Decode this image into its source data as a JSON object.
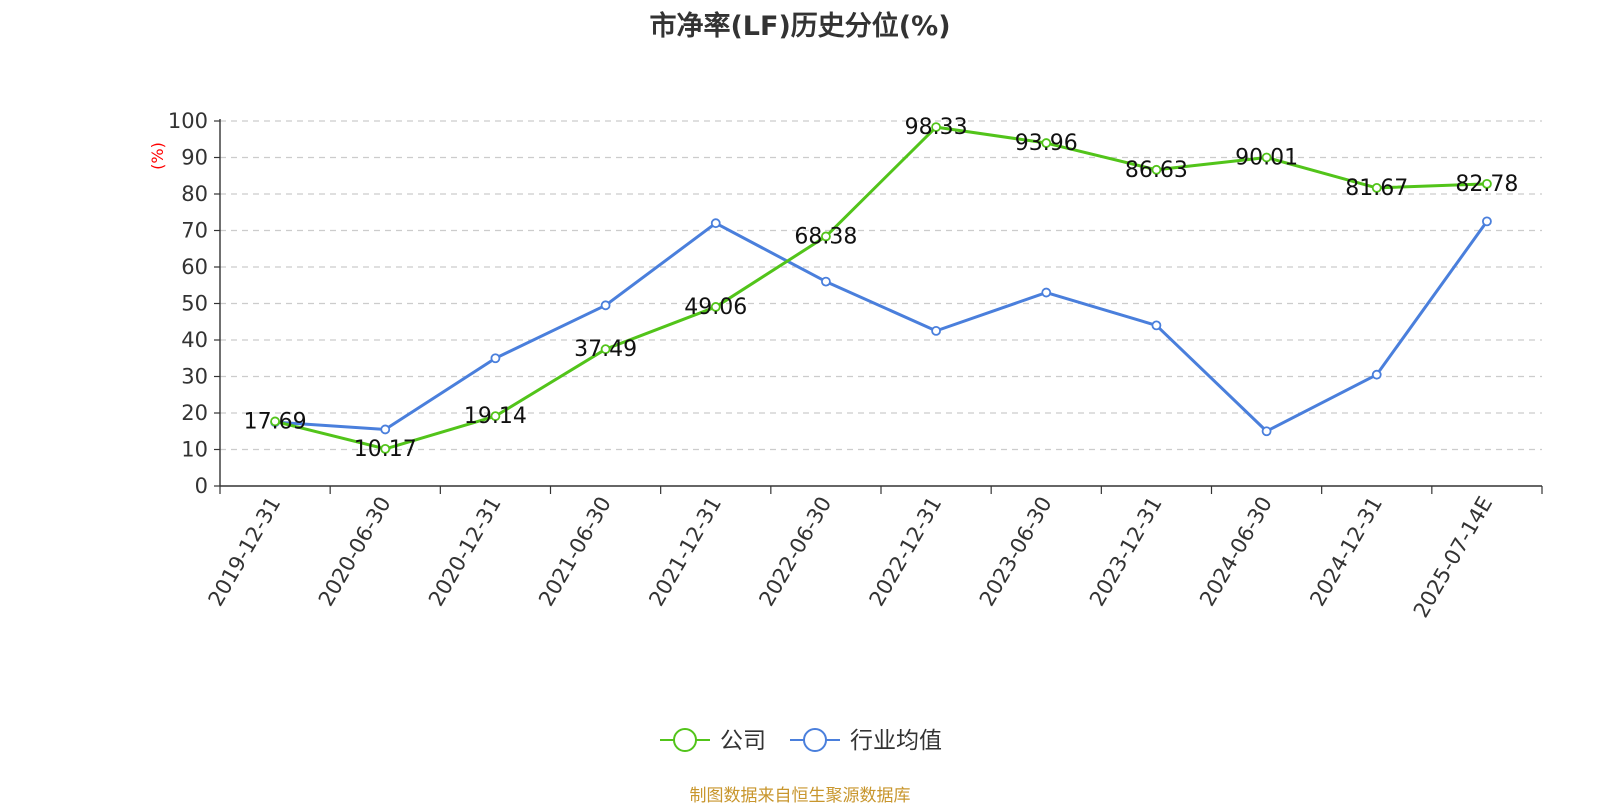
{
  "chart_data": {
    "type": "line",
    "title": "市净率(LF)历史分位(%)",
    "ylabel": "(%)",
    "xlabel": "",
    "ylim": [
      0,
      100
    ],
    "yticks": [
      0,
      10,
      20,
      30,
      40,
      50,
      60,
      70,
      80,
      90,
      100
    ],
    "categories": [
      "2019-12-31",
      "2020-06-30",
      "2020-12-31",
      "2021-06-30",
      "2021-12-31",
      "2022-06-30",
      "2022-12-31",
      "2023-06-30",
      "2023-12-31",
      "2024-06-30",
      "2024-12-31",
      "2025-07-14E"
    ],
    "series": [
      {
        "name": "公司",
        "color": "#52c41a",
        "values": [
          17.69,
          10.17,
          19.14,
          37.49,
          49.06,
          68.38,
          98.33,
          93.96,
          86.63,
          90.01,
          81.67,
          82.78
        ],
        "labels": [
          "17.69",
          "10.17",
          "19.14",
          "37.49",
          "49.06",
          "68.38",
          "98.33",
          "93.96",
          "86.63",
          "90.01",
          "81.67",
          "82.78"
        ]
      },
      {
        "name": "行业均值",
        "color": "#4a7fdc",
        "values": [
          17.5,
          15.5,
          35,
          49.5,
          72,
          56,
          42.5,
          53,
          44,
          15,
          30.5,
          72.5
        ]
      }
    ],
    "grid": "horizontal dashed",
    "legend_position": "bottom-center"
  },
  "footer": {
    "source_text": "制图数据来自恒生聚源数据库",
    "color": "#c8962d"
  }
}
